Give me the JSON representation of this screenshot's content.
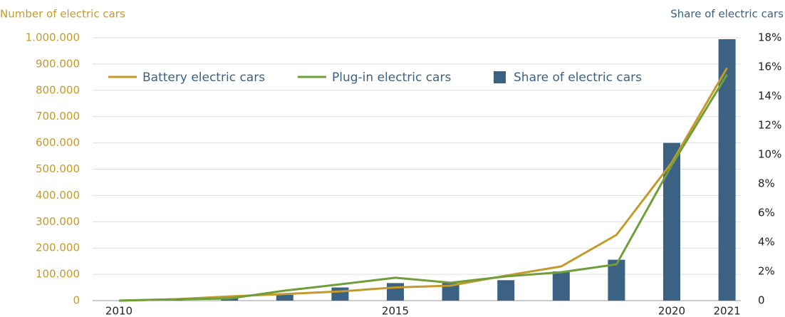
{
  "chart_data": {
    "type": "bar_line",
    "y_axis_label": "Number of electric cars",
    "y2_axis_label": "Share of electric cars",
    "categories": [
      "2010",
      null,
      null,
      null,
      null,
      "2015",
      null,
      null,
      null,
      null,
      "2020",
      "2021"
    ],
    "series": [
      {
        "name": "Battery electric cars",
        "type": "line",
        "color": "#c49a2c",
        "values": [
          0,
          5000,
          16000,
          25000,
          35000,
          50000,
          57000,
          95000,
          130000,
          250000,
          525000,
          885000
        ]
      },
      {
        "name": "Plug-in electric cars",
        "type": "line",
        "color": "#6f9e3a",
        "values": [
          0,
          5000,
          8000,
          38000,
          62000,
          87000,
          68000,
          92000,
          108000,
          138000,
          515000,
          860000
        ]
      },
      {
        "name": "Share of electric cars",
        "type": "bar",
        "axis": "y2",
        "color": "#3b6282",
        "values": [
          0,
          0.1,
          0.2,
          0.4,
          0.9,
          1.2,
          1.2,
          1.4,
          2.0,
          2.8,
          10.8,
          17.9
        ]
      }
    ],
    "ylim": [
      0,
      1000000
    ],
    "yticks": [
      0,
      {
        "value": 100000,
        "label": "100.000"
      },
      {
        "value": 200000,
        "label": "200.000"
      },
      {
        "value": 300000,
        "label": "300.000"
      },
      {
        "value": 400000,
        "label": "400.000"
      },
      {
        "value": 500000,
        "label": "500.000"
      },
      {
        "value": 600000,
        "label": "600.000"
      },
      {
        "value": 700000,
        "label": "700.000"
      },
      {
        "value": 800000,
        "label": "800.000"
      },
      {
        "value": 900000,
        "label": "900.000"
      },
      {
        "value": 1000000,
        "label": "1.000.000"
      }
    ],
    "y2lim": [
      0,
      18
    ],
    "y2ticks": [
      0,
      {
        "value": 2,
        "label": "2%"
      },
      {
        "value": 4,
        "label": "4%"
      },
      {
        "value": 6,
        "label": "6%"
      },
      {
        "value": 8,
        "label": "8%"
      },
      {
        "value": 10,
        "label": "10%"
      },
      {
        "value": 12,
        "label": "12%"
      },
      {
        "value": 14,
        "label": "14%"
      },
      {
        "value": 16,
        "label": "16%"
      },
      {
        "value": 18,
        "label": "18%"
      }
    ],
    "grid": true
  }
}
